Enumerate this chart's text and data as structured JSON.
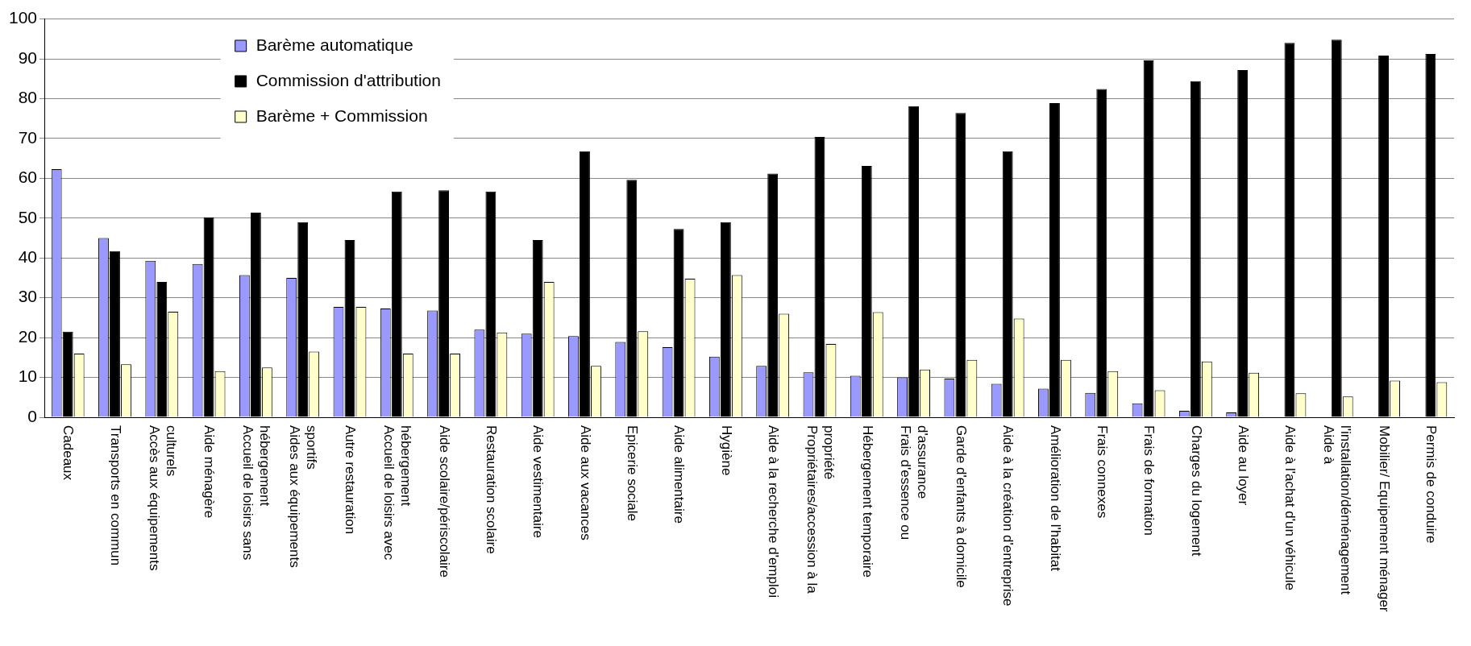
{
  "chart_data": {
    "type": "bar",
    "categories": [
      "Cadeaux",
      "Transports en commun",
      "Accès aux équipements culturels",
      "Aide ménagère",
      "Accueil de loisirs sans hébergement",
      "Aides aux équipements sportifs",
      "Autre restauration",
      "Accueil de loisirs avec hébergement",
      "Aide scolaire/périscolaire",
      "Restauration scolaire",
      "Aide vestimentaire",
      "Aide aux vacances",
      "Epicerie sociale",
      "Aide alimentaire",
      "Hygiène",
      "Aide à la recherche d'emploi",
      "Propriétaires/accession à la propriété",
      "Hébergement temporaire",
      "Frais d'essence ou d'assurance",
      "Garde d'enfants à domicile",
      "Aide à la création d'entreprise",
      "Amélioration de l'habitat",
      "Frais connexes",
      "Frais de formation",
      "Charges du logement",
      "Aide au loyer",
      "Aide à l'achat d'un véhicule",
      "Aide à l'installation/déménagement",
      "Mobilier/ Equipement ménager",
      "Permis de conduire"
    ],
    "series": [
      {
        "name": "Barème automatique",
        "color": "#9999ff",
        "values": [
          62.3,
          45,
          39.3,
          38.5,
          35.7,
          35,
          27.7,
          27.3,
          26.8,
          22,
          21,
          20.4,
          18.9,
          17.6,
          15.2,
          12.9,
          11.3,
          10.4,
          10,
          9.7,
          8.4,
          7.2,
          6.1,
          3.5,
          1.6,
          1.2,
          0,
          0,
          0,
          0
        ]
      },
      {
        "name": "Commission d'attribution",
        "color": "#000000",
        "values": [
          21.5,
          41.7,
          34,
          50.2,
          51.4,
          49,
          44.5,
          56.7,
          57,
          56.7,
          44.5,
          66.8,
          59.6,
          47.3,
          49,
          61.2,
          70.4,
          63.1,
          78.1,
          76.4,
          66.8,
          78.9,
          82.4,
          89.6,
          84.4,
          87.2,
          94,
          94.8,
          90.8,
          91.2
        ]
      },
      {
        "name": "Barème + Commission",
        "color": "#ffffcc",
        "values": [
          16,
          13.3,
          26.5,
          11.6,
          12.5,
          16.5,
          27.7,
          16,
          16,
          21.3,
          34,
          12.9,
          21.6,
          34.8,
          35.7,
          26,
          18.4,
          26.4,
          12,
          14.4,
          24.8,
          14.4,
          11.6,
          6.8,
          14,
          11.2,
          6,
          5.2,
          9.2,
          8.8
        ]
      }
    ],
    "ylim": [
      0,
      100
    ],
    "yticks": [
      0,
      10,
      20,
      30,
      40,
      50,
      60,
      70,
      80,
      90,
      100
    ],
    "grid": "y",
    "legend": "top left"
  }
}
